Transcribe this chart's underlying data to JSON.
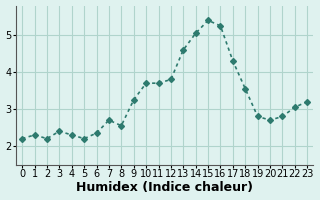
{
  "x": [
    0,
    1,
    2,
    3,
    4,
    5,
    6,
    7,
    8,
    9,
    10,
    11,
    12,
    13,
    14,
    15,
    16,
    17,
    18,
    19,
    20,
    21,
    22,
    23
  ],
  "y": [
    2.2,
    2.3,
    2.2,
    2.4,
    2.3,
    2.2,
    2.35,
    2.7,
    2.55,
    3.25,
    3.7,
    3.7,
    3.8,
    4.6,
    5.05,
    5.4,
    5.25,
    4.3,
    3.55,
    2.8,
    2.7,
    2.8,
    3.05,
    3.2
  ],
  "line_color": "#2d7a6e",
  "marker": "D",
  "marker_size": 3,
  "linewidth": 1.2,
  "xlabel": "Humidex (Indice chaleur)",
  "xlabel_fontsize": 9,
  "ylim": [
    1.5,
    5.8
  ],
  "xlim": [
    -0.5,
    23.5
  ],
  "yticks": [
    2,
    3,
    4,
    5
  ],
  "xticks": [
    0,
    1,
    2,
    3,
    4,
    5,
    6,
    7,
    8,
    9,
    10,
    11,
    12,
    13,
    14,
    15,
    16,
    17,
    18,
    19,
    20,
    21,
    22,
    23
  ],
  "grid_color": "#b0d4cc",
  "bg_color": "#dff2ef",
  "fig_bg_color": "#dff2ef",
  "tick_fontsize": 7
}
